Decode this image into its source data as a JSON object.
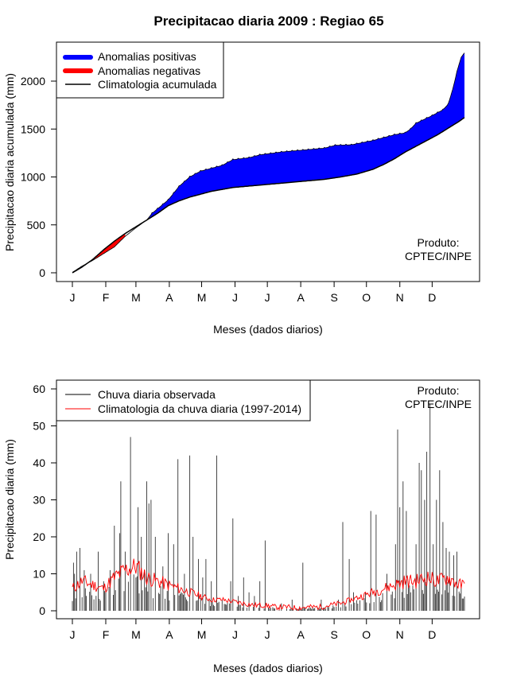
{
  "title": "Precipitacao diaria 2009 : Regiao 65",
  "chart_data": [
    {
      "type": "area",
      "name": "accumulated",
      "xlabel": "Meses (dados diarios)",
      "ylabel": "Precipitacao diaria acumulada (mm)",
      "month_ticks": [
        "J",
        "F",
        "M",
        "A",
        "M",
        "J",
        "J",
        "A",
        "S",
        "O",
        "N",
        "D"
      ],
      "month_start_days": [
        1,
        32,
        60,
        91,
        121,
        152,
        182,
        213,
        244,
        274,
        305,
        335
      ],
      "xlim": [
        1,
        365
      ],
      "ylim": [
        0,
        2300
      ],
      "yticks": [
        0,
        500,
        1000,
        1500,
        2000
      ],
      "legend": {
        "placement": "top-left",
        "items": [
          {
            "label": "Anomalias positivas",
            "color": "#0000ff",
            "style": "thick"
          },
          {
            "label": "Anomalias negativas",
            "color": "#ff0000",
            "style": "thick"
          },
          {
            "label": "Climatologia acumulada",
            "color": "#000000",
            "style": "line"
          }
        ]
      },
      "annotation": [
        "Produto:",
        "CPTEC/INPE"
      ],
      "annotation_placement": "bottom-right",
      "observed_points": [
        [
          1,
          5
        ],
        [
          10,
          70
        ],
        [
          20,
          130
        ],
        [
          30,
          200
        ],
        [
          40,
          270
        ],
        [
          50,
          380
        ],
        [
          60,
          470
        ],
        [
          70,
          550
        ],
        [
          75,
          620
        ],
        [
          90,
          760
        ],
        [
          100,
          900
        ],
        [
          110,
          1000
        ],
        [
          120,
          1060
        ],
        [
          140,
          1120
        ],
        [
          150,
          1180
        ],
        [
          165,
          1200
        ],
        [
          175,
          1230
        ],
        [
          195,
          1260
        ],
        [
          215,
          1280
        ],
        [
          235,
          1300
        ],
        [
          245,
          1330
        ],
        [
          260,
          1335
        ],
        [
          280,
          1380
        ],
        [
          300,
          1440
        ],
        [
          310,
          1460
        ],
        [
          315,
          1500
        ],
        [
          320,
          1560
        ],
        [
          335,
          1640
        ],
        [
          345,
          1700
        ],
        [
          350,
          1760
        ],
        [
          355,
          1950
        ],
        [
          358,
          2100
        ],
        [
          362,
          2250
        ],
        [
          365,
          2295
        ]
      ],
      "climatology_points": [
        [
          1,
          0
        ],
        [
          10,
          60
        ],
        [
          20,
          140
        ],
        [
          30,
          240
        ],
        [
          40,
          330
        ],
        [
          50,
          410
        ],
        [
          60,
          480
        ],
        [
          70,
          550
        ],
        [
          80,
          620
        ],
        [
          90,
          700
        ],
        [
          100,
          750
        ],
        [
          110,
          790
        ],
        [
          120,
          820
        ],
        [
          130,
          850
        ],
        [
          140,
          870
        ],
        [
          150,
          890
        ],
        [
          160,
          900
        ],
        [
          175,
          915
        ],
        [
          195,
          935
        ],
        [
          215,
          955
        ],
        [
          235,
          975
        ],
        [
          250,
          1000
        ],
        [
          265,
          1030
        ],
        [
          280,
          1080
        ],
        [
          290,
          1130
        ],
        [
          300,
          1190
        ],
        [
          310,
          1260
        ],
        [
          320,
          1320
        ],
        [
          330,
          1380
        ],
        [
          340,
          1440
        ],
        [
          350,
          1510
        ],
        [
          360,
          1580
        ],
        [
          365,
          1620
        ]
      ]
    },
    {
      "type": "bar",
      "name": "daily",
      "xlabel": "Meses (dados diarios)",
      "ylabel": "Precipitacao diaria (mm)",
      "month_ticks": [
        "J",
        "F",
        "M",
        "A",
        "M",
        "J",
        "J",
        "A",
        "S",
        "O",
        "N",
        "D"
      ],
      "month_start_days": [
        1,
        32,
        60,
        91,
        121,
        152,
        182,
        213,
        244,
        274,
        305,
        335
      ],
      "xlim": [
        1,
        365
      ],
      "ylim": [
        0,
        60
      ],
      "yticks": [
        0,
        10,
        20,
        30,
        40,
        50,
        60
      ],
      "legend": {
        "placement": "top-left",
        "items": [
          {
            "label": "Chuva diaria observada",
            "color": "#000000",
            "style": "line"
          },
          {
            "label": "Climatologia da chuva diaria (1997-2014)",
            "color": "#ff0000",
            "style": "line"
          }
        ]
      },
      "annotation": [
        "Produto:",
        "CPTEC/INPE"
      ],
      "annotation_placement": "top-right",
      "observed_peaks": [
        [
          2,
          13
        ],
        [
          3,
          10
        ],
        [
          5,
          16
        ],
        [
          8,
          17
        ],
        [
          12,
          11
        ],
        [
          18,
          10
        ],
        [
          25,
          16
        ],
        [
          30,
          8
        ],
        [
          36,
          11
        ],
        [
          40,
          23
        ],
        [
          45,
          21
        ],
        [
          46,
          35
        ],
        [
          50,
          16
        ],
        [
          55,
          47
        ],
        [
          60,
          9
        ],
        [
          62,
          28
        ],
        [
          65,
          20
        ],
        [
          68,
          11
        ],
        [
          70,
          35
        ],
        [
          72,
          29
        ],
        [
          74,
          30
        ],
        [
          78,
          20
        ],
        [
          85,
          12
        ],
        [
          90,
          21
        ],
        [
          95,
          18
        ],
        [
          99,
          41
        ],
        [
          105,
          10
        ],
        [
          110,
          42
        ],
        [
          113,
          20
        ],
        [
          118,
          14
        ],
        [
          122,
          9
        ],
        [
          125,
          14
        ],
        [
          130,
          8
        ],
        [
          135,
          42
        ],
        [
          140,
          3
        ],
        [
          148,
          8
        ],
        [
          150,
          25
        ],
        [
          155,
          4
        ],
        [
          160,
          9
        ],
        [
          165,
          5
        ],
        [
          170,
          4
        ],
        [
          175,
          8
        ],
        [
          180,
          19
        ],
        [
          195,
          2
        ],
        [
          205,
          3
        ],
        [
          215,
          13
        ],
        [
          232,
          3
        ],
        [
          248,
          3
        ],
        [
          252,
          24
        ],
        [
          258,
          14
        ],
        [
          262,
          5
        ],
        [
          273,
          5
        ],
        [
          278,
          27
        ],
        [
          283,
          26
        ],
        [
          293,
          10
        ],
        [
          301,
          18
        ],
        [
          303,
          49
        ],
        [
          305,
          28
        ],
        [
          308,
          35
        ],
        [
          311,
          27
        ],
        [
          315,
          5
        ],
        [
          320,
          18
        ],
        [
          323,
          40
        ],
        [
          325,
          38
        ],
        [
          328,
          30
        ],
        [
          330,
          43
        ],
        [
          333,
          56
        ],
        [
          336,
          18
        ],
        [
          339,
          30
        ],
        [
          342,
          38
        ],
        [
          345,
          24
        ],
        [
          348,
          17
        ],
        [
          351,
          16
        ],
        [
          355,
          15
        ],
        [
          358,
          16
        ],
        [
          362,
          7
        ]
      ],
      "climatology_points": [
        [
          1,
          6
        ],
        [
          10,
          8
        ],
        [
          20,
          7
        ],
        [
          30,
          6
        ],
        [
          40,
          9
        ],
        [
          50,
          11
        ],
        [
          60,
          12
        ],
        [
          70,
          9
        ],
        [
          80,
          8
        ],
        [
          90,
          7
        ],
        [
          100,
          6
        ],
        [
          110,
          5
        ],
        [
          120,
          4
        ],
        [
          130,
          3
        ],
        [
          140,
          3
        ],
        [
          150,
          2.5
        ],
        [
          160,
          2
        ],
        [
          170,
          1.5
        ],
        [
          180,
          1.5
        ],
        [
          190,
          1
        ],
        [
          200,
          1
        ],
        [
          210,
          0.8
        ],
        [
          220,
          1
        ],
        [
          230,
          1
        ],
        [
          240,
          1.5
        ],
        [
          250,
          2
        ],
        [
          260,
          3
        ],
        [
          270,
          4
        ],
        [
          280,
          5
        ],
        [
          290,
          6
        ],
        [
          300,
          7
        ],
        [
          310,
          8
        ],
        [
          320,
          8
        ],
        [
          330,
          9
        ],
        [
          340,
          8
        ],
        [
          350,
          9
        ],
        [
          360,
          7
        ],
        [
          365,
          7
        ]
      ]
    }
  ]
}
